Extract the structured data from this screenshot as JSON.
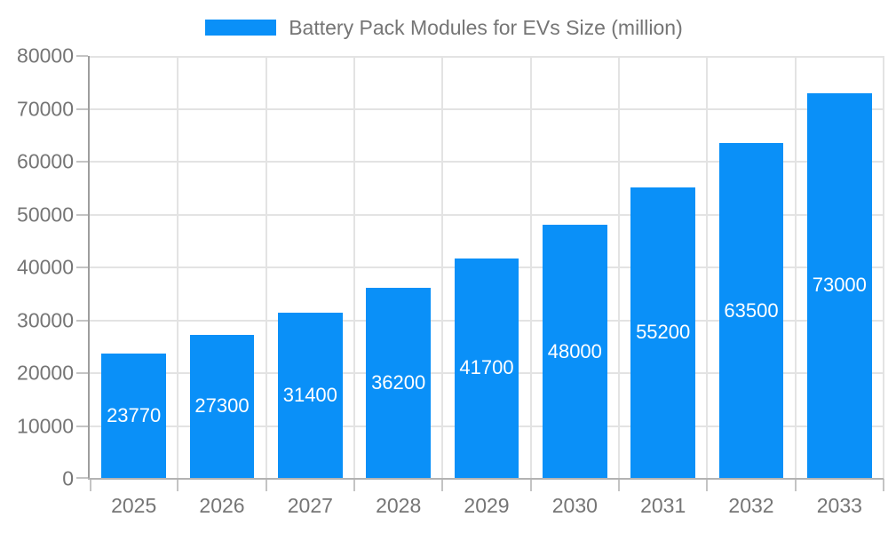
{
  "legend": {
    "label": "Battery Pack Modules for EVs Size (million)"
  },
  "chart_data": {
    "type": "bar",
    "title": "Battery Pack Modules for EVs Size (million)",
    "categories": [
      "2025",
      "2026",
      "2027",
      "2028",
      "2029",
      "2030",
      "2031",
      "2032",
      "2033"
    ],
    "values": [
      23770,
      27300,
      31400,
      36200,
      41700,
      48000,
      55200,
      63500,
      73000
    ],
    "value_labels": [
      "23770",
      "27300",
      "31400",
      "36200",
      "41700",
      "48000",
      "55200",
      "63500",
      "73000"
    ],
    "xlabel": "",
    "ylabel": "",
    "ylim": [
      0,
      80000
    ],
    "ytick_step": 10000,
    "yticks": [
      0,
      10000,
      20000,
      30000,
      40000,
      50000,
      60000,
      70000,
      80000
    ],
    "grid": true,
    "legend_position": "top-center",
    "colors": {
      "bar": "#0a90f8",
      "value_label": "#ffffff",
      "axis_text": "#757575",
      "grid_line": "#e3e3e3",
      "tick_line": "#c4c4c4",
      "y_axis_line": "#9e9e9e",
      "x_axis_line": "#b3b3b3"
    }
  }
}
